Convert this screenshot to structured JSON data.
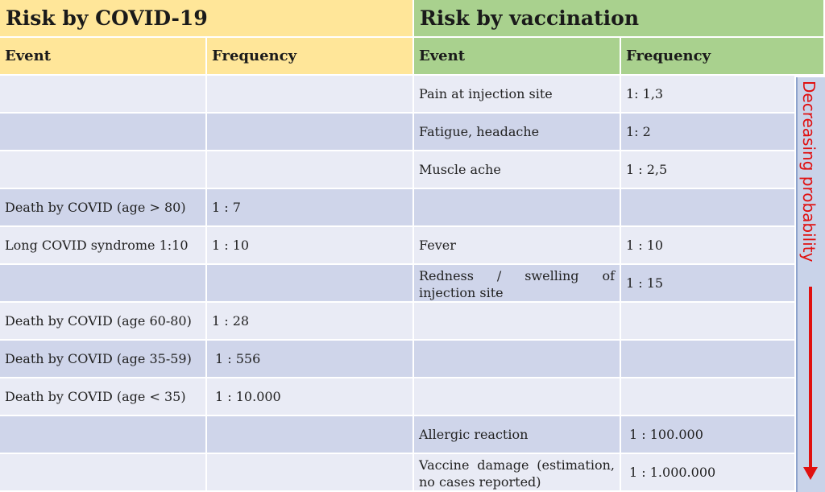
{
  "covid": {
    "title": "Risk by COVID-19",
    "col_event": "Event",
    "col_frequency": "Frequency"
  },
  "vaccination": {
    "title": "Risk by vaccination",
    "col_event": "Event",
    "col_frequency": "Frequency"
  },
  "rows": [
    {
      "covid_event": "",
      "covid_freq": "",
      "vacc_event": "Pain at injection site",
      "vacc_freq": "1: 1,3"
    },
    {
      "covid_event": "",
      "covid_freq": "",
      "vacc_event": "Fatigue, headache",
      "vacc_freq": "1: 2"
    },
    {
      "covid_event": "",
      "covid_freq": "",
      "vacc_event": "Muscle ache",
      "vacc_freq": "1 : 2,5"
    },
    {
      "covid_event": "Death by COVID (age > 80)",
      "covid_freq": "1 : 7",
      "vacc_event": "",
      "vacc_freq": ""
    },
    {
      "covid_event": "Long COVID syndrome 1:10",
      "covid_freq": "1 : 10",
      "vacc_event": "Fever",
      "vacc_freq": "1 : 10"
    },
    {
      "covid_event": "",
      "covid_freq": "",
      "vacc_event": "Redness / swelling of injection site",
      "vacc_freq": "1 : 15"
    },
    {
      "covid_event": "Death by COVID (age 60-80)",
      "covid_freq": "1 : 28",
      "vacc_event": "",
      "vacc_freq": ""
    },
    {
      "covid_event": "Death by COVID (age 35-59)",
      "covid_freq": "1 : 556",
      "vacc_event": "",
      "vacc_freq": ""
    },
    {
      "covid_event": "Death by COVID (age < 35)",
      "covid_freq": "1 : 10.000",
      "vacc_event": "",
      "vacc_freq": ""
    },
    {
      "covid_event": "",
      "covid_freq": "",
      "vacc_event": "Allergic reaction",
      "vacc_freq": "1 : 100.000"
    },
    {
      "covid_event": "",
      "covid_freq": "",
      "vacc_event": "Vaccine damage (estimation, no cases reported)",
      "vacc_freq": "1 : 1.000.000"
    }
  ],
  "side_label": "Decreasing probability",
  "colors": {
    "covid_header": "#ffe699",
    "vaccination_header": "#a9d18e",
    "row_light": "#e9ebf5",
    "row_dark": "#cfd5ea",
    "arrow": "#e01010"
  }
}
